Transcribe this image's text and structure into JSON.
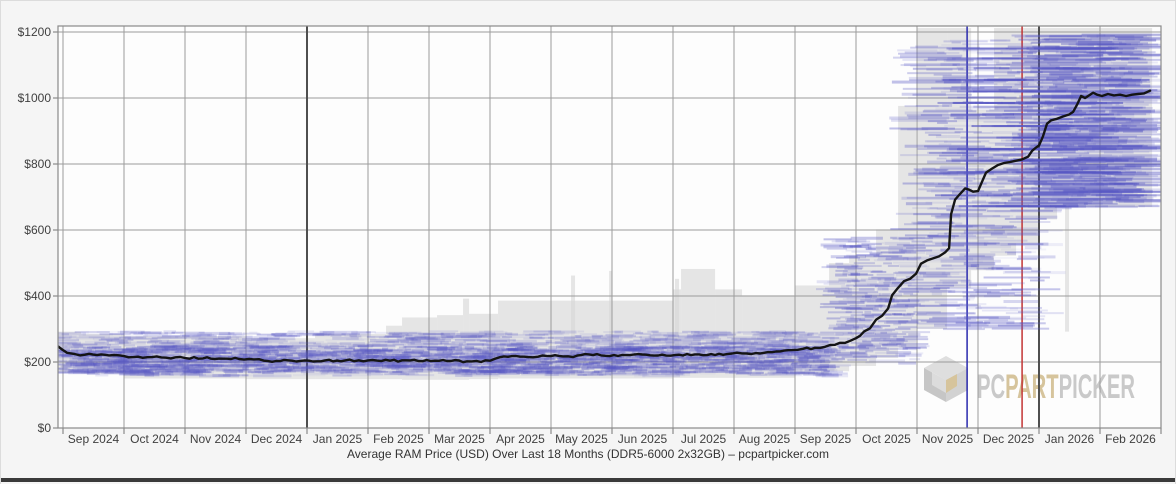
{
  "page": {
    "background": "#f5f5f5",
    "bottom_bar_color": "#3a3a3a"
  },
  "chart_data": {
    "type": "line",
    "title": "Average RAM Price (USD) Over Last 18 Months (DDR5-6000 2x32GB) – pcpartpicker.com",
    "ylim": [
      0,
      1200
    ],
    "y_ticks": [
      0,
      200,
      400,
      600,
      800,
      1000,
      1200
    ],
    "y_tick_labels": [
      "$0",
      "$200",
      "$400",
      "$600",
      "$800",
      "$1000",
      "$1200"
    ],
    "x_tick_labels": [
      "Sep 2024",
      "Oct 2024",
      "Nov 2024",
      "Dec 2024",
      "Jan 2025",
      "Feb 2025",
      "Mar 2025",
      "Apr 2025",
      "May 2025",
      "Jun 2025",
      "Jul 2025",
      "Aug 2025",
      "Sep 2025",
      "Oct 2025",
      "Nov 2025",
      "Dec 2025",
      "Jan 2026",
      "Feb 2026"
    ],
    "grid": true,
    "legend": "none",
    "year_boundary_lines": [
      "2025-01-01",
      "2026-01-01"
    ],
    "event_lines": [
      {
        "name": "blue-marker-line",
        "date": "2025-11-26",
        "color": "#2a2aae"
      },
      {
        "name": "red-marker-line",
        "date": "2025-12-23",
        "color": "#c23434"
      }
    ],
    "series": {
      "name": "average-price-usd",
      "points": [
        [
          "2024-08-29",
          247
        ],
        [
          "2024-08-31",
          238
        ],
        [
          "2024-09-03",
          228
        ],
        [
          "2024-09-07",
          224
        ],
        [
          "2024-09-12",
          222
        ],
        [
          "2024-09-18",
          221
        ],
        [
          "2024-09-24",
          220
        ],
        [
          "2024-10-01",
          218
        ],
        [
          "2024-10-08",
          216
        ],
        [
          "2024-10-15",
          215
        ],
        [
          "2024-10-22",
          213
        ],
        [
          "2024-11-01",
          212
        ],
        [
          "2024-11-10",
          211
        ],
        [
          "2024-11-20",
          210
        ],
        [
          "2024-11-28",
          209
        ],
        [
          "2024-12-05",
          208
        ],
        [
          "2024-12-10",
          204
        ],
        [
          "2024-12-16",
          203
        ],
        [
          "2024-12-24",
          204
        ],
        [
          "2025-01-02",
          204
        ],
        [
          "2025-01-10",
          205
        ],
        [
          "2025-01-20",
          205
        ],
        [
          "2025-02-01",
          205
        ],
        [
          "2025-02-12",
          204
        ],
        [
          "2025-02-22",
          205
        ],
        [
          "2025-03-04",
          204
        ],
        [
          "2025-03-12",
          203
        ],
        [
          "2025-03-20",
          202
        ],
        [
          "2025-03-27",
          200
        ],
        [
          "2025-04-01",
          204
        ],
        [
          "2025-04-04",
          211
        ],
        [
          "2025-04-08",
          217
        ],
        [
          "2025-04-12",
          218
        ],
        [
          "2025-04-16",
          216
        ],
        [
          "2025-04-20",
          215
        ],
        [
          "2025-04-25",
          216
        ],
        [
          "2025-05-01",
          218
        ],
        [
          "2025-05-07",
          217
        ],
        [
          "2025-05-12",
          215
        ],
        [
          "2025-05-16",
          221
        ],
        [
          "2025-05-20",
          223
        ],
        [
          "2025-05-26",
          220
        ],
        [
          "2025-06-02",
          221
        ],
        [
          "2025-06-10",
          221
        ],
        [
          "2025-06-18",
          222
        ],
        [
          "2025-06-26",
          222
        ],
        [
          "2025-07-04",
          222
        ],
        [
          "2025-07-12",
          223
        ],
        [
          "2025-07-20",
          224
        ],
        [
          "2025-07-28",
          224
        ],
        [
          "2025-08-05",
          226
        ],
        [
          "2025-08-12",
          227
        ],
        [
          "2025-08-18",
          230
        ],
        [
          "2025-08-24",
          232
        ],
        [
          "2025-08-30",
          236
        ],
        [
          "2025-09-05",
          240
        ],
        [
          "2025-09-11",
          243
        ],
        [
          "2025-09-16",
          246
        ],
        [
          "2025-09-21",
          252
        ],
        [
          "2025-09-26",
          258
        ],
        [
          "2025-10-01",
          272
        ],
        [
          "2025-10-05",
          292
        ],
        [
          "2025-10-08",
          302
        ],
        [
          "2025-10-11",
          328
        ],
        [
          "2025-10-14",
          340
        ],
        [
          "2025-10-17",
          362
        ],
        [
          "2025-10-19",
          402
        ],
        [
          "2025-10-22",
          425
        ],
        [
          "2025-10-25",
          445
        ],
        [
          "2025-10-28",
          452
        ],
        [
          "2025-10-31",
          468
        ],
        [
          "2025-11-03",
          498
        ],
        [
          "2025-11-06",
          508
        ],
        [
          "2025-11-09",
          514
        ],
        [
          "2025-11-12",
          520
        ],
        [
          "2025-11-15",
          532
        ],
        [
          "2025-11-17",
          545
        ],
        [
          "2025-11-18",
          648
        ],
        [
          "2025-11-20",
          692
        ],
        [
          "2025-11-22",
          706
        ],
        [
          "2025-11-25",
          726
        ],
        [
          "2025-11-27",
          722
        ],
        [
          "2025-11-29",
          716
        ],
        [
          "2025-12-01",
          718
        ],
        [
          "2025-12-03",
          746
        ],
        [
          "2025-12-05",
          774
        ],
        [
          "2025-12-08",
          786
        ],
        [
          "2025-12-11",
          797
        ],
        [
          "2025-12-14",
          803
        ],
        [
          "2025-12-17",
          806
        ],
        [
          "2025-12-20",
          810
        ],
        [
          "2025-12-23",
          814
        ],
        [
          "2025-12-26",
          822
        ],
        [
          "2025-12-28",
          840
        ],
        [
          "2025-12-30",
          850
        ],
        [
          "2026-01-01",
          856
        ],
        [
          "2026-01-03",
          884
        ],
        [
          "2026-01-05",
          922
        ],
        [
          "2026-01-07",
          932
        ],
        [
          "2026-01-10",
          937
        ],
        [
          "2026-01-13",
          944
        ],
        [
          "2026-01-16",
          950
        ],
        [
          "2026-01-18",
          958
        ],
        [
          "2026-01-20",
          980
        ],
        [
          "2026-01-22",
          1006
        ],
        [
          "2026-01-24",
          1000
        ],
        [
          "2026-01-26",
          1008
        ],
        [
          "2026-01-28",
          1016
        ],
        [
          "2026-01-30",
          1010
        ],
        [
          "2026-02-02",
          1006
        ],
        [
          "2026-02-05",
          1012
        ],
        [
          "2026-02-08",
          1008
        ],
        [
          "2026-02-11",
          1010
        ],
        [
          "2026-02-14",
          1006
        ],
        [
          "2026-02-17",
          1010
        ],
        [
          "2026-02-20",
          1012
        ],
        [
          "2026-02-23",
          1014
        ],
        [
          "2026-02-26",
          1022
        ]
      ]
    },
    "price_range_blocks": [
      [
        "2024-08-29",
        "2024-09-10",
        292,
        168
      ],
      [
        "2024-09-10",
        "2024-10-01",
        285,
        165
      ],
      [
        "2024-10-01",
        "2024-12-01",
        278,
        150
      ],
      [
        "2024-12-01",
        "2025-01-05",
        272,
        148
      ],
      [
        "2025-01-05",
        "2025-02-10",
        285,
        148
      ],
      [
        "2025-02-10",
        "2025-02-18",
        310,
        148
      ],
      [
        "2025-02-18",
        "2025-03-05",
        335,
        146
      ],
      [
        "2025-03-05",
        "2025-03-18",
        342,
        146
      ],
      [
        "2025-03-18",
        "2025-03-21",
        392,
        146
      ],
      [
        "2025-03-21",
        "2025-04-05",
        346,
        148
      ],
      [
        "2025-04-05",
        "2025-07-01",
        386,
        150
      ],
      [
        "2025-05-11",
        "2025-05-13",
        462,
        160
      ],
      [
        "2025-05-30",
        "2025-06-01",
        476,
        160
      ],
      [
        "2025-07-01",
        "2025-07-05",
        420,
        152
      ],
      [
        "2025-07-02",
        "2025-07-04",
        452,
        160
      ],
      [
        "2025-07-05",
        "2025-07-22",
        482,
        152
      ],
      [
        "2025-07-22",
        "2025-08-05",
        420,
        152
      ],
      [
        "2025-08-05",
        "2025-09-01",
        402,
        152
      ],
      [
        "2025-09-01",
        "2025-09-18",
        432,
        162
      ],
      [
        "2025-09-18",
        "2025-09-28",
        500,
        172
      ],
      [
        "2025-09-28",
        "2025-10-11",
        522,
        188
      ],
      [
        "2025-10-11",
        "2025-10-22",
        602,
        212
      ],
      [
        "2025-10-22",
        "2025-10-31",
        976,
        242
      ],
      [
        "2025-11-01",
        "2025-11-16",
        1212,
        300
      ],
      [
        "2025-11-16",
        "2025-11-28",
        1212,
        424
      ],
      [
        "2025-11-28",
        "2025-12-09",
        964,
        478
      ],
      [
        "2025-12-09",
        "2025-12-20",
        1212,
        522
      ],
      [
        "2025-12-20",
        "2025-12-31",
        1212,
        560
      ],
      [
        "2026-01-01",
        "2026-01-10",
        1212,
        632
      ],
      [
        "2026-01-10",
        "2026-02-27",
        1212,
        670
      ],
      [
        "2026-01-14",
        "2026-01-16",
        670,
        292
      ]
    ],
    "listing_scatter": {
      "seed": 11,
      "bands": [
        {
          "from": "2024-08-29",
          "to": "2025-09-20",
          "pmin": 162,
          "pmax": 296,
          "count": 1700,
          "lmin": 6,
          "lmax": 40,
          "amin": 0.04,
          "amax": 0.26
        },
        {
          "from": "2024-08-29",
          "to": "2025-09-20",
          "pmin": 170,
          "pmax": 252,
          "count": 1100,
          "lmin": 6,
          "lmax": 30,
          "amin": 0.1,
          "amax": 0.38
        },
        {
          "from": "2025-09-20",
          "to": "2025-10-31",
          "pmin": 200,
          "pmax": 580,
          "count": 300,
          "lmin": 6,
          "lmax": 36,
          "amin": 0.08,
          "amax": 0.38
        },
        {
          "from": "2025-11-01",
          "to": "2025-12-31",
          "pmin": 300,
          "pmax": 1180,
          "count": 430,
          "lmin": 8,
          "lmax": 70,
          "amin": 0.06,
          "amax": 0.4
        },
        {
          "from": "2026-01-01",
          "to": "2026-02-26",
          "pmin": 672,
          "pmax": 1195,
          "count": 600,
          "lmin": 14,
          "lmax": 95,
          "amin": 0.07,
          "amax": 0.45
        }
      ],
      "rows": {
        "from": "2025-11-10",
        "to": "2026-02-26",
        "prices": [
          1150,
          1120,
          1090,
          1055,
          1020,
          985,
          950,
          915,
          880,
          845,
          810,
          775,
          740,
          705,
          672
        ],
        "dashes_per_row": 7,
        "len_min": 25,
        "len_max": 110,
        "alpha": 0.5
      }
    },
    "colors": {
      "plot_background": "#fdfdfd",
      "gridline": "#9b9b9b",
      "year_line": "#4f4f4f",
      "border": "#8a8a8a",
      "average_line": "#151515",
      "range_band": "#d6d6d6",
      "scatter_blue": "88,88,196",
      "axis_text": "#404040",
      "watermark_gray": "#c9c9c9",
      "watermark_gold": "#d6c49c"
    },
    "watermark": {
      "pc": "PC",
      "part": "PART",
      "picker": "PICKER"
    }
  }
}
